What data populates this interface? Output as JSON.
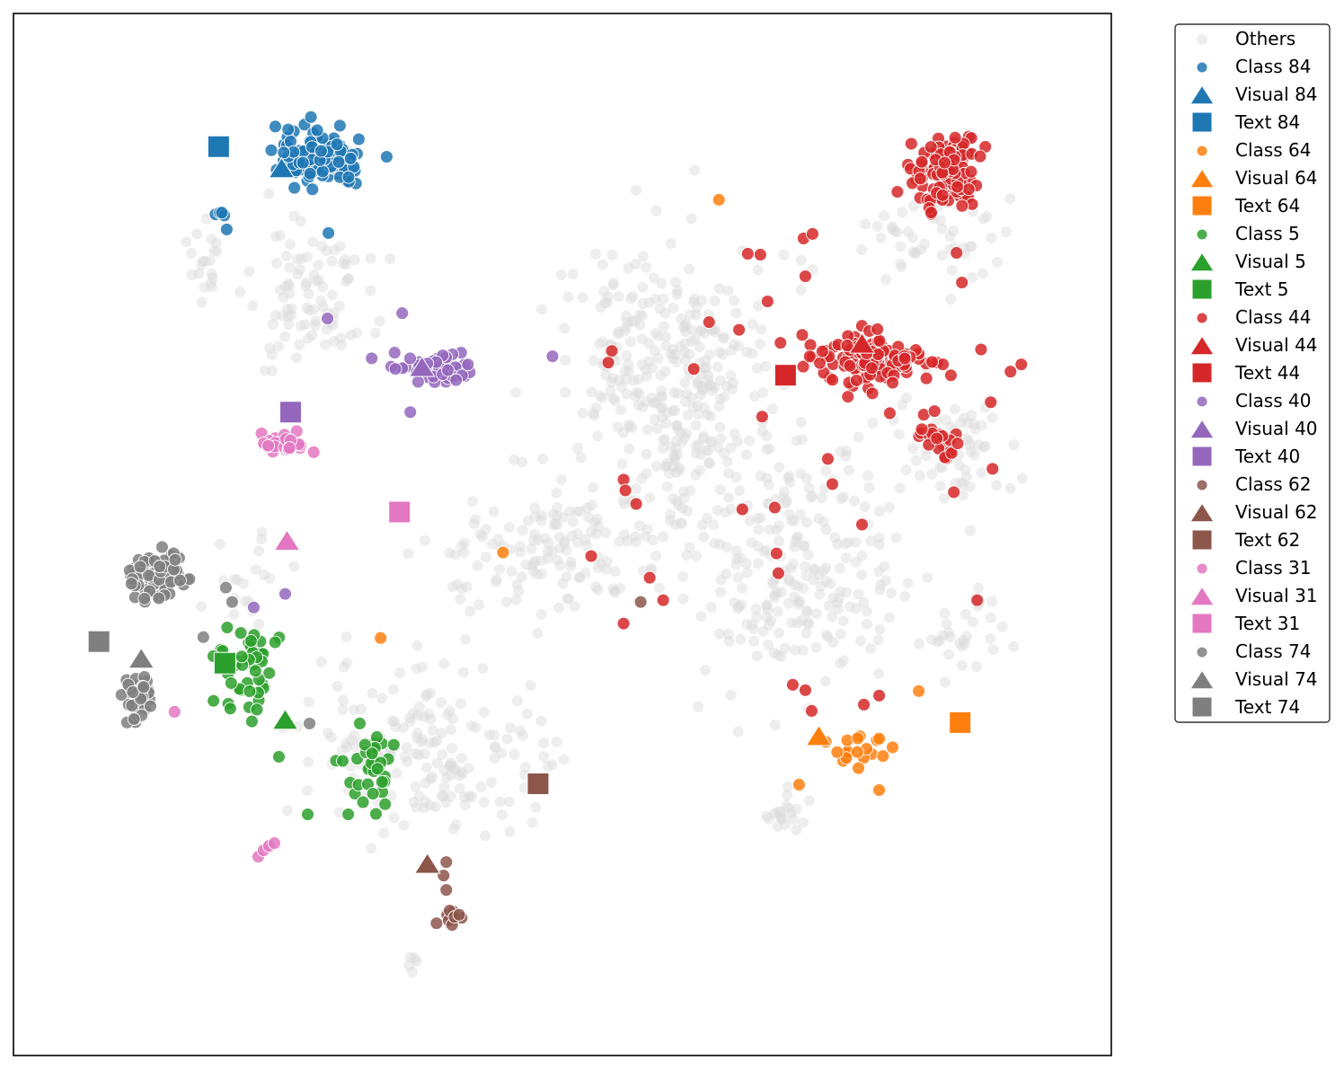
{
  "chart_data": {
    "type": "scatter",
    "title": "",
    "xlabel": "",
    "ylabel": "",
    "xlim": [
      0,
      1220
    ],
    "ylim": [
      0,
      1158
    ],
    "axes_ticks_visible": false,
    "grid": false,
    "legend_position": "outside-right-top",
    "others": {
      "name": "Others",
      "color": "#d9d9d9",
      "clusters": [
        {
          "cx": 330,
          "cy": 310,
          "sx": 60,
          "sy": 70,
          "n": 90,
          "seed": 11
        },
        {
          "cx": 210,
          "cy": 275,
          "sx": 15,
          "sy": 35,
          "n": 20,
          "seed": 12
        },
        {
          "cx": 720,
          "cy": 410,
          "sx": 110,
          "sy": 140,
          "n": 330,
          "seed": 13
        },
        {
          "cx": 600,
          "cy": 600,
          "sx": 120,
          "sy": 70,
          "n": 140,
          "seed": 14
        },
        {
          "cx": 870,
          "cy": 620,
          "sx": 110,
          "sy": 130,
          "n": 240,
          "seed": 15
        },
        {
          "cx": 470,
          "cy": 820,
          "sx": 120,
          "sy": 90,
          "n": 170,
          "seed": 16
        },
        {
          "cx": 1020,
          "cy": 250,
          "sx": 70,
          "sy": 60,
          "n": 50,
          "seed": 17
        },
        {
          "cx": 1050,
          "cy": 480,
          "sx": 60,
          "sy": 60,
          "n": 60,
          "seed": 18
        },
        {
          "cx": 1060,
          "cy": 690,
          "sx": 45,
          "sy": 45,
          "n": 30,
          "seed": 19
        },
        {
          "cx": 860,
          "cy": 890,
          "sx": 25,
          "sy": 20,
          "n": 20,
          "seed": 20
        },
        {
          "cx": 445,
          "cy": 1055,
          "sx": 6,
          "sy": 10,
          "n": 5,
          "seed": 21
        },
        {
          "cx": 260,
          "cy": 640,
          "sx": 30,
          "sy": 50,
          "n": 20,
          "seed": 22
        }
      ]
    },
    "series": [
      {
        "name": "Class 84",
        "color": "#1f77b4",
        "marker": "circle",
        "clusters": [
          {
            "cx": 340,
            "cy": 160,
            "sx": 42,
            "sy": 28,
            "n": 120,
            "seed": 101
          },
          {
            "cx": 230,
            "cy": 220,
            "sx": 12,
            "sy": 8,
            "n": 4,
            "seed": 102
          }
        ],
        "points": [
          [
            350,
            244
          ],
          [
            237,
            240
          ]
        ]
      },
      {
        "name": "Visual 84",
        "color": "#1f77b4",
        "marker": "triangle",
        "points": [
          [
            298,
            173
          ]
        ]
      },
      {
        "name": "Text 84",
        "color": "#1f77b4",
        "marker": "square",
        "points": [
          [
            228,
            148
          ]
        ]
      },
      {
        "name": "Class 64",
        "color": "#ff7f0e",
        "marker": "circle",
        "clusters": [
          {
            "cx": 940,
            "cy": 820,
            "sx": 28,
            "sy": 25,
            "n": 18,
            "seed": 201
          }
        ],
        "points": [
          [
            784,
            207
          ],
          [
            544,
            599
          ],
          [
            408,
            694
          ],
          [
            873,
            857
          ],
          [
            962,
            863
          ],
          [
            1006,
            753
          ]
        ]
      },
      {
        "name": "Visual 64",
        "color": "#ff7f0e",
        "marker": "triangle",
        "points": [
          [
            895,
            804
          ]
        ]
      },
      {
        "name": "Text 64",
        "color": "#ff7f0e",
        "marker": "square",
        "points": [
          [
            1052,
            788
          ]
        ]
      },
      {
        "name": "Class 5",
        "color": "#2ca02c",
        "marker": "circle",
        "clusters": [
          {
            "cx": 255,
            "cy": 735,
            "sx": 35,
            "sy": 45,
            "n": 45,
            "seed": 301
          },
          {
            "cx": 400,
            "cy": 840,
            "sx": 30,
            "sy": 45,
            "n": 35,
            "seed": 302
          }
        ],
        "points": [
          [
            327,
            890
          ],
          [
            372,
            890
          ],
          [
            295,
            826
          ]
        ]
      },
      {
        "name": "Visual 5",
        "color": "#2ca02c",
        "marker": "triangle",
        "points": [
          [
            302,
            786
          ]
        ]
      },
      {
        "name": "Text 5",
        "color": "#2ca02c",
        "marker": "square",
        "points": [
          [
            235,
            722
          ]
        ]
      },
      {
        "name": "Class 44",
        "color": "#d62728",
        "marker": "circle",
        "clusters": [
          {
            "cx": 1035,
            "cy": 180,
            "sx": 35,
            "sy": 40,
            "n": 110,
            "seed": 401
          },
          {
            "cx": 950,
            "cy": 385,
            "sx": 75,
            "sy": 25,
            "n": 120,
            "seed": 402
          },
          {
            "cx": 1025,
            "cy": 470,
            "sx": 25,
            "sy": 30,
            "n": 25,
            "seed": 403
          }
        ],
        "points": [
          [
            816,
            267
          ],
          [
            830,
            268
          ],
          [
            878,
            250
          ],
          [
            888,
            245
          ],
          [
            880,
            292
          ],
          [
            838,
            320
          ],
          [
            773,
            343
          ],
          [
            665,
            375
          ],
          [
            661,
            388
          ],
          [
            756,
            395
          ],
          [
            832,
            448
          ],
          [
            678,
            518
          ],
          [
            680,
            530
          ],
          [
            692,
            545
          ],
          [
            810,
            551
          ],
          [
            846,
            549
          ],
          [
            642,
            603
          ],
          [
            707,
            627
          ],
          [
            722,
            652
          ],
          [
            678,
            678
          ],
          [
            848,
            600
          ],
          [
            850,
            622
          ],
          [
            943,
            568
          ],
          [
            910,
            523
          ],
          [
            905,
            495
          ],
          [
            1048,
            266
          ],
          [
            1054,
            299
          ],
          [
            866,
            746
          ],
          [
            880,
            752
          ],
          [
            887,
            775
          ],
          [
            945,
            768
          ],
          [
            962,
            758
          ],
          [
            1071,
            652
          ],
          [
            1088,
            506
          ],
          [
            1045,
            532
          ],
          [
            1120,
            390
          ],
          [
            1108,
            398
          ],
          [
            1086,
            432
          ]
        ]
      },
      {
        "name": "Visual 44",
        "color": "#d62728",
        "marker": "triangle",
        "points": [
          [
            943,
            368
          ]
        ]
      },
      {
        "name": "Text 44",
        "color": "#d62728",
        "marker": "square",
        "points": [
          [
            858,
            402
          ]
        ]
      },
      {
        "name": "Class 40",
        "color": "#9467bd",
        "marker": "circle",
        "clusters": [
          {
            "cx": 480,
            "cy": 395,
            "sx": 38,
            "sy": 18,
            "n": 50,
            "seed": 501
          }
        ],
        "points": [
          [
            349,
            339
          ],
          [
            432,
            333
          ],
          [
            441,
            443
          ],
          [
            599,
            381
          ],
          [
            302,
            645
          ],
          [
            267,
            660
          ]
        ]
      },
      {
        "name": "Visual 40",
        "color": "#9467bd",
        "marker": "triangle",
        "points": [
          [
            454,
            394
          ]
        ]
      },
      {
        "name": "Text 40",
        "color": "#9467bd",
        "marker": "square",
        "points": [
          [
            308,
            443
          ]
        ]
      },
      {
        "name": "Class 62",
        "color": "#8c564b",
        "marker": "circle",
        "clusters": [
          {
            "cx": 487,
            "cy": 1005,
            "sx": 10,
            "sy": 7,
            "n": 14,
            "seed": 601
          }
        ],
        "points": [
          [
            481,
            943
          ],
          [
            478,
            958
          ],
          [
            481,
            974
          ],
          [
            697,
            654
          ]
        ]
      },
      {
        "name": "Visual 62",
        "color": "#8c564b",
        "marker": "triangle",
        "points": [
          [
            460,
            946
          ]
        ]
      },
      {
        "name": "Text 62",
        "color": "#8c564b",
        "marker": "square",
        "points": [
          [
            583,
            856
          ]
        ]
      },
      {
        "name": "Class 31",
        "color": "#e377c2",
        "marker": "circle",
        "clusters": [
          {
            "cx": 300,
            "cy": 477,
            "sx": 22,
            "sy": 12,
            "n": 35,
            "seed": 701
          }
        ],
        "points": [
          [
            272,
            937
          ],
          [
            278,
            930
          ],
          [
            284,
            925
          ],
          [
            290,
            922
          ],
          [
            179,
            776
          ]
        ]
      },
      {
        "name": "Visual 31",
        "color": "#e377c2",
        "marker": "triangle",
        "points": [
          [
            304,
            587
          ]
        ]
      },
      {
        "name": "Text 31",
        "color": "#e377c2",
        "marker": "square",
        "points": [
          [
            429,
            554
          ]
        ]
      },
      {
        "name": "Class 74",
        "color": "#7f7f7f",
        "marker": "circle",
        "clusters": [
          {
            "cx": 160,
            "cy": 625,
            "sx": 28,
            "sy": 25,
            "n": 80,
            "seed": 801
          },
          {
            "cx": 138,
            "cy": 760,
            "sx": 15,
            "sy": 25,
            "n": 35,
            "seed": 802
          }
        ],
        "points": [
          [
            329,
            789
          ],
          [
            243,
            654
          ],
          [
            236,
            638
          ],
          [
            211,
            693
          ]
        ]
      },
      {
        "name": "Visual 74",
        "color": "#7f7f7f",
        "marker": "triangle",
        "points": [
          [
            142,
            718
          ]
        ]
      },
      {
        "name": "Text 74",
        "color": "#7f7f7f",
        "marker": "square",
        "points": [
          [
            95,
            698
          ]
        ]
      }
    ]
  }
}
